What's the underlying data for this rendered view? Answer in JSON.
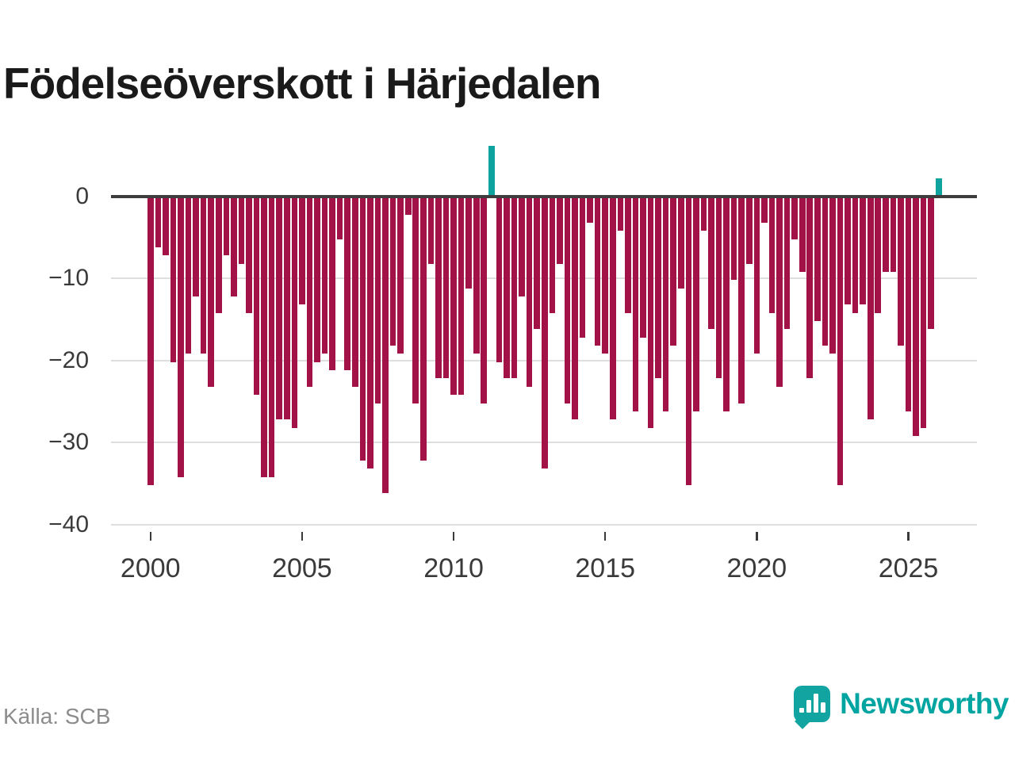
{
  "chart_data": {
    "type": "bar",
    "title": "Födelseöverskott i Härjedalen",
    "subtitle": "",
    "xlabel": "",
    "ylabel": "",
    "unit": "quarterly net births (births minus deaths)",
    "ylim": [
      -40,
      8
    ],
    "grid": "horizontal",
    "legend": "none",
    "yticks": [
      {
        "value": 0,
        "label": "0"
      },
      {
        "value": -10,
        "label": "−10"
      },
      {
        "value": -20,
        "label": "−20"
      },
      {
        "value": -30,
        "label": "−30"
      },
      {
        "value": -40,
        "label": "−40"
      }
    ],
    "xticks": [
      2000,
      2005,
      2010,
      2015,
      2020,
      2025
    ],
    "data_by_year": [
      {
        "year": 2000,
        "quarters": [
          -35,
          -6,
          -7,
          -20
        ]
      },
      {
        "year": 2001,
        "quarters": [
          -34,
          -19,
          -12,
          -19
        ]
      },
      {
        "year": 2002,
        "quarters": [
          -23,
          -14,
          -7,
          -12
        ]
      },
      {
        "year": 2003,
        "quarters": [
          -8,
          -14,
          -24,
          -34
        ]
      },
      {
        "year": 2004,
        "quarters": [
          -34,
          -27,
          -27,
          -28
        ]
      },
      {
        "year": 2005,
        "quarters": [
          -13,
          -23,
          -20,
          -19
        ]
      },
      {
        "year": 2006,
        "quarters": [
          -21,
          -5,
          -21,
          -23
        ]
      },
      {
        "year": 2007,
        "quarters": [
          -32,
          -33,
          -25,
          -36
        ]
      },
      {
        "year": 2008,
        "quarters": [
          -18,
          -19,
          -2,
          -25
        ]
      },
      {
        "year": 2009,
        "quarters": [
          -32,
          -8,
          -22,
          -22
        ]
      },
      {
        "year": 2010,
        "quarters": [
          -24,
          -24,
          -11,
          -19
        ]
      },
      {
        "year": 2011,
        "quarters": [
          -25,
          6,
          -20,
          -22
        ]
      },
      {
        "year": 2012,
        "quarters": [
          -22,
          -12,
          -23,
          -16
        ]
      },
      {
        "year": 2013,
        "quarters": [
          -33,
          -14,
          -8,
          -25
        ]
      },
      {
        "year": 2014,
        "quarters": [
          -27,
          -17,
          -3,
          -18
        ]
      },
      {
        "year": 2015,
        "quarters": [
          -19,
          -27,
          -4,
          -14
        ]
      },
      {
        "year": 2016,
        "quarters": [
          -26,
          -17,
          -28,
          -22
        ]
      },
      {
        "year": 2017,
        "quarters": [
          -26,
          -18,
          -11,
          -35
        ]
      },
      {
        "year": 2018,
        "quarters": [
          -26,
          -4,
          -16,
          -22
        ]
      },
      {
        "year": 2019,
        "quarters": [
          -26,
          -10,
          -25,
          -8
        ]
      },
      {
        "year": 2020,
        "quarters": [
          -19,
          -3,
          -14,
          -23
        ]
      },
      {
        "year": 2021,
        "quarters": [
          -16,
          -5,
          -9,
          -22
        ]
      },
      {
        "year": 2022,
        "quarters": [
          -15,
          -18,
          -19,
          -35
        ]
      },
      {
        "year": 2023,
        "quarters": [
          -13,
          -14,
          -13,
          -27
        ]
      },
      {
        "year": 2024,
        "quarters": [
          -14,
          -9,
          -9,
          -18
        ]
      },
      {
        "year": 2025,
        "quarters": [
          -26,
          -29,
          -28,
          -16
        ]
      },
      {
        "year": 2026,
        "quarters": [
          2
        ]
      }
    ],
    "colors": {
      "negative_bar": "#a31246",
      "positive_bar": "#0fa3a0",
      "baseline": "#3d3d3d",
      "gridline": "#dedede",
      "title_text": "#1a1a1a",
      "axis_text": "#3a3a3a",
      "source_text": "#8c8c8c",
      "brand_teal": "#00a5a1"
    }
  },
  "footer": {
    "source_label": "Källa: SCB",
    "brand_name": "Newsworthy",
    "brand_icon": "bar-chart-map-pin-icon"
  }
}
